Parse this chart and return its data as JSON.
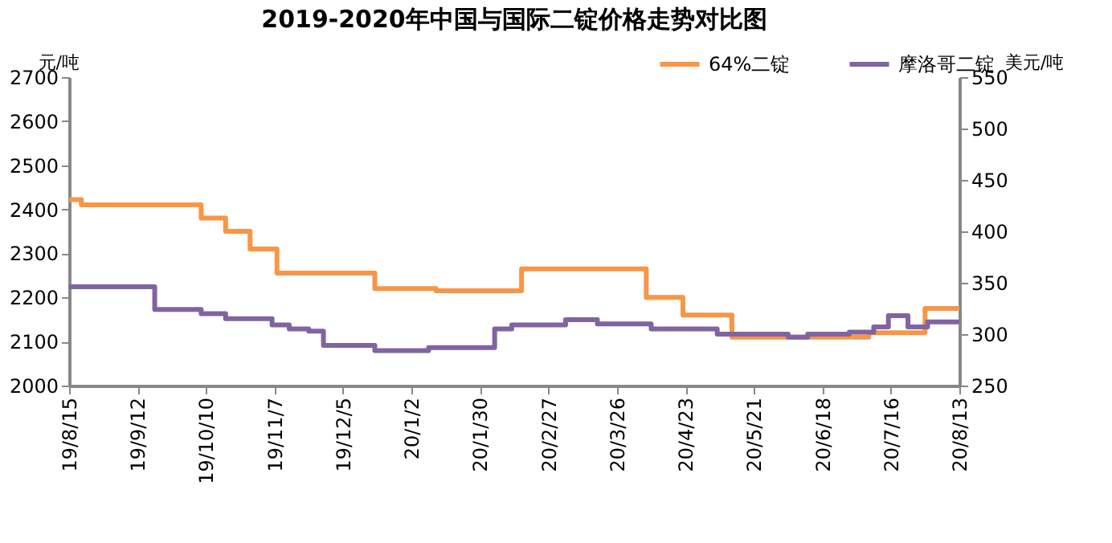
{
  "chart_data": {
    "type": "step",
    "title": "2019-2020年中国与国际二锭价格走势对比图",
    "ylabel": "元/吨",
    "y2label": "美元/吨",
    "xlim": [
      "2019-08-15",
      "2020-08-13"
    ],
    "xticks": [
      {
        "value": "2019-08-15",
        "label": "19/8/15"
      },
      {
        "value": "2019-09-12",
        "label": "19/9/12"
      },
      {
        "value": "2019-10-10",
        "label": "19/10/10"
      },
      {
        "value": "2019-11-07",
        "label": "19/11/7"
      },
      {
        "value": "2019-12-05",
        "label": "19/12/5"
      },
      {
        "value": "2020-01-02",
        "label": "20/1/2"
      },
      {
        "value": "2020-01-30",
        "label": "20/1/30"
      },
      {
        "value": "2020-02-27",
        "label": "20/2/27"
      },
      {
        "value": "2020-03-26",
        "label": "20/3/26"
      },
      {
        "value": "2020-04-23",
        "label": "20/4/23"
      },
      {
        "value": "2020-05-21",
        "label": "20/5/21"
      },
      {
        "value": "2020-06-18",
        "label": "20/6/18"
      },
      {
        "value": "2020-07-16",
        "label": "20/7/16"
      },
      {
        "value": "2020-08-13",
        "label": "20/8/13"
      }
    ],
    "ylim": [
      2000,
      2700
    ],
    "yticks": [
      2000,
      2100,
      2200,
      2300,
      2400,
      2500,
      2600,
      2700
    ],
    "y2lim": [
      250,
      550
    ],
    "y2ticks": [
      250,
      300,
      350,
      400,
      450,
      500,
      550
    ],
    "legend": "top right",
    "grid": false,
    "line_style": "solid",
    "marker": "none",
    "series": [
      {
        "name": "64%二锭",
        "color": "#f79646",
        "x": [
          "2019-08-15",
          "2019-08-20",
          "2019-10-08",
          "2019-10-18",
          "2019-10-28",
          "2019-11-08",
          "2019-12-18",
          "2020-01-12",
          "2020-02-16",
          "2020-04-07",
          "2020-04-22",
          "2020-05-12",
          "2020-07-07",
          "2020-07-30",
          "2020-08-13"
        ],
        "values": [
          2422,
          2410,
          2380,
          2350,
          2310,
          2255,
          2220,
          2215,
          2265,
          2200,
          2160,
          2110,
          2120,
          2175,
          2175
        ]
      },
      {
        "name": "摩洛哥二锭",
        "color": "#8064a2",
        "axis": "y2",
        "x": [
          "2019-08-15",
          "2019-09-19",
          "2019-10-08",
          "2019-10-18",
          "2019-11-06",
          "2019-11-13",
          "2019-11-21",
          "2019-11-27",
          "2019-12-18",
          "2020-01-09",
          "2020-02-05",
          "2020-02-12",
          "2020-03-05",
          "2020-03-18",
          "2020-04-09",
          "2020-05-06",
          "2020-06-04",
          "2020-06-12",
          "2020-06-29",
          "2020-07-09",
          "2020-07-15",
          "2020-07-23",
          "2020-07-31",
          "2020-08-13"
        ],
        "values": [
          346,
          324,
          320,
          315,
          309,
          305,
          303,
          289,
          284,
          287,
          305,
          309,
          314,
          310,
          305,
          300,
          297,
          300,
          302,
          307,
          318,
          307,
          312,
          312
        ]
      }
    ]
  }
}
